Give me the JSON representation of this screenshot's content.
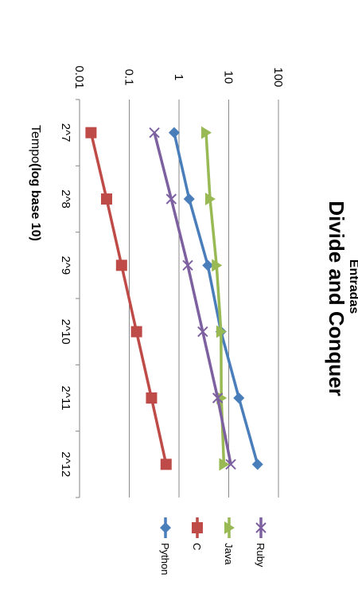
{
  "chart_data": {
    "type": "line",
    "title": "Divide and Conquer",
    "xlabel": "Entradas",
    "ylabel_prefix": "Tempo ",
    "ylabel_emphasis": "(log base 10)",
    "y_scale": "log10",
    "ylim": [
      0.01,
      100
    ],
    "y_ticks": [
      "0.01",
      "0.1",
      "1",
      "10",
      "100"
    ],
    "categories": [
      "2^7",
      "2^8",
      "2^9",
      "2^10",
      "2^11",
      "2^12"
    ],
    "grid": true,
    "legend_position": "bottom",
    "series": [
      {
        "name": "Python",
        "color": "#4a7ebb",
        "marker": "diamond",
        "values": [
          0.8,
          1.6,
          3.8,
          7,
          16,
          38
        ]
      },
      {
        "name": "C",
        "color": "#be4b48",
        "marker": "square",
        "values": [
          0.017,
          0.035,
          0.07,
          0.14,
          0.28,
          0.55
        ]
      },
      {
        "name": "Java",
        "color": "#98b954",
        "marker": "triangle",
        "values": [
          3.5,
          4.2,
          5.7,
          7,
          7.1,
          8
        ]
      },
      {
        "name": "Ruby",
        "color": "#7d60a0",
        "marker": "x",
        "values": [
          0.32,
          0.7,
          1.5,
          3,
          6,
          11
        ]
      }
    ]
  }
}
